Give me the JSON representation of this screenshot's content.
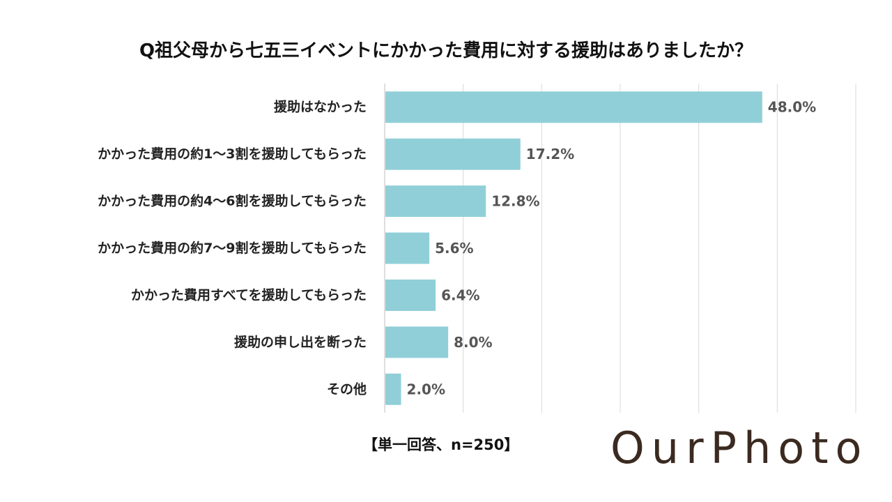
{
  "title": "Q祖父母から七五三イベントにかかった費用に対する援助はありましたか？",
  "note": "【単一回答、n=250】",
  "logo": {
    "text": "OurPhoto",
    "color": "#3b2a20"
  },
  "bar_color": "#90cfd8",
  "grid_color": "#d9d9d9",
  "chart_data": {
    "type": "bar",
    "orientation": "horizontal",
    "categories": [
      "援助はなかった",
      "かかった費用の約1～3割を援助してもらった",
      "かかった費用の約4～6割を援助してもらった",
      "かかった費用の約7～9割を援助してもらった",
      "かかった費用すべてを援助してもらった",
      "援助の申し出を断った",
      "その他"
    ],
    "values": [
      48.0,
      17.2,
      12.8,
      5.6,
      6.4,
      8.0,
      2.0
    ],
    "value_labels": [
      "48.0%",
      "17.2%",
      "12.8%",
      "5.6%",
      "6.4%",
      "8.0%",
      "2.0%"
    ],
    "xlim": [
      0,
      60
    ],
    "grid": true
  }
}
